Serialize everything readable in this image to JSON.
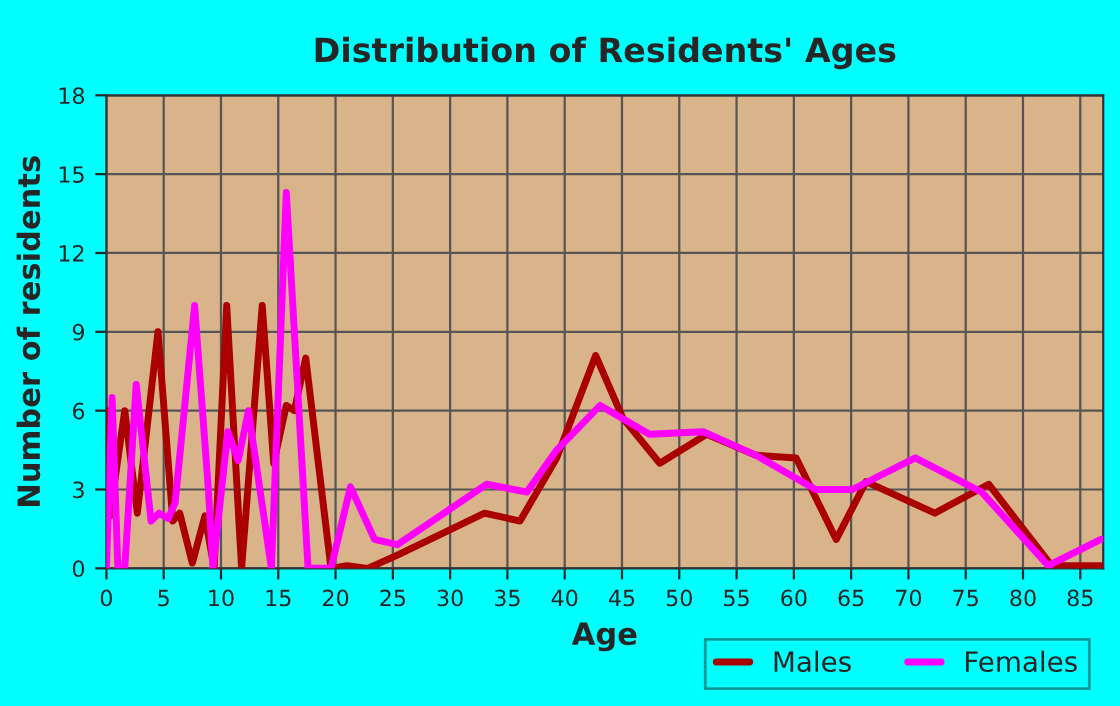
{
  "chart_data": {
    "type": "line",
    "title": "Distribution of Residents' Ages",
    "xlabel": "Age",
    "ylabel": "Number of residents",
    "xlim": [
      0,
      87
    ],
    "xticks": [
      0,
      5,
      10,
      15,
      20,
      25,
      30,
      35,
      40,
      45,
      50,
      55,
      60,
      65,
      70,
      75,
      80,
      85
    ],
    "ylim": [
      0,
      18
    ],
    "yticks": [
      0,
      3,
      6,
      9,
      12,
      15,
      18
    ],
    "grid": true,
    "legend": "bottom right",
    "series": [
      {
        "name": "Males",
        "color": "#aa0000",
        "x": [
          0,
          0.3,
          1.6,
          2.7,
          4.5,
          5.8,
          6.4,
          7.5,
          8.6,
          9.4,
          10.5,
          11.8,
          13.6,
          14.6,
          15.7,
          16.4,
          17.4,
          19.6,
          21,
          22.8,
          25.4,
          33,
          36.1,
          39.3,
          42.7,
          45.1,
          48.3,
          52.4,
          56.7,
          60.2,
          63.7,
          66.3,
          72.3,
          77,
          82.5,
          86.8
        ],
        "values": [
          6,
          2,
          6,
          2.1,
          9,
          1.8,
          2.1,
          0.2,
          2,
          0,
          10,
          0,
          10,
          4,
          6.2,
          6,
          8,
          0,
          0.1,
          0,
          0.5,
          2.1,
          1.8,
          4.2,
          8.1,
          5.7,
          4,
          5.1,
          4.3,
          4.2,
          1.1,
          3.3,
          2.1,
          3.2,
          0.1,
          0.1
        ]
      },
      {
        "name": "Females",
        "color": "#ff00ff",
        "x": [
          0,
          0.5,
          1,
          1.6,
          2.6,
          3.9,
          4.6,
          5.4,
          6,
          7.7,
          8.9,
          9.3,
          10.6,
          11.5,
          12.4,
          14.4,
          15.7,
          17.6,
          19.6,
          21.3,
          23.4,
          25.4,
          33.2,
          36.7,
          39.3,
          43.1,
          47.4,
          52.1,
          56.7,
          61.9,
          65.1,
          70.6,
          76.4,
          82.2,
          86.8
        ],
        "values": [
          0,
          6.5,
          0,
          0,
          7,
          1.8,
          2.1,
          1.9,
          2.5,
          10,
          3,
          0,
          5.2,
          4.1,
          6,
          0,
          14.3,
          0,
          0,
          3.1,
          1.1,
          0.9,
          3.2,
          2.9,
          4.5,
          6.2,
          5.1,
          5.2,
          4.3,
          3,
          3,
          4.2,
          2.9,
          0.1,
          1.1
        ]
      }
    ]
  }
}
